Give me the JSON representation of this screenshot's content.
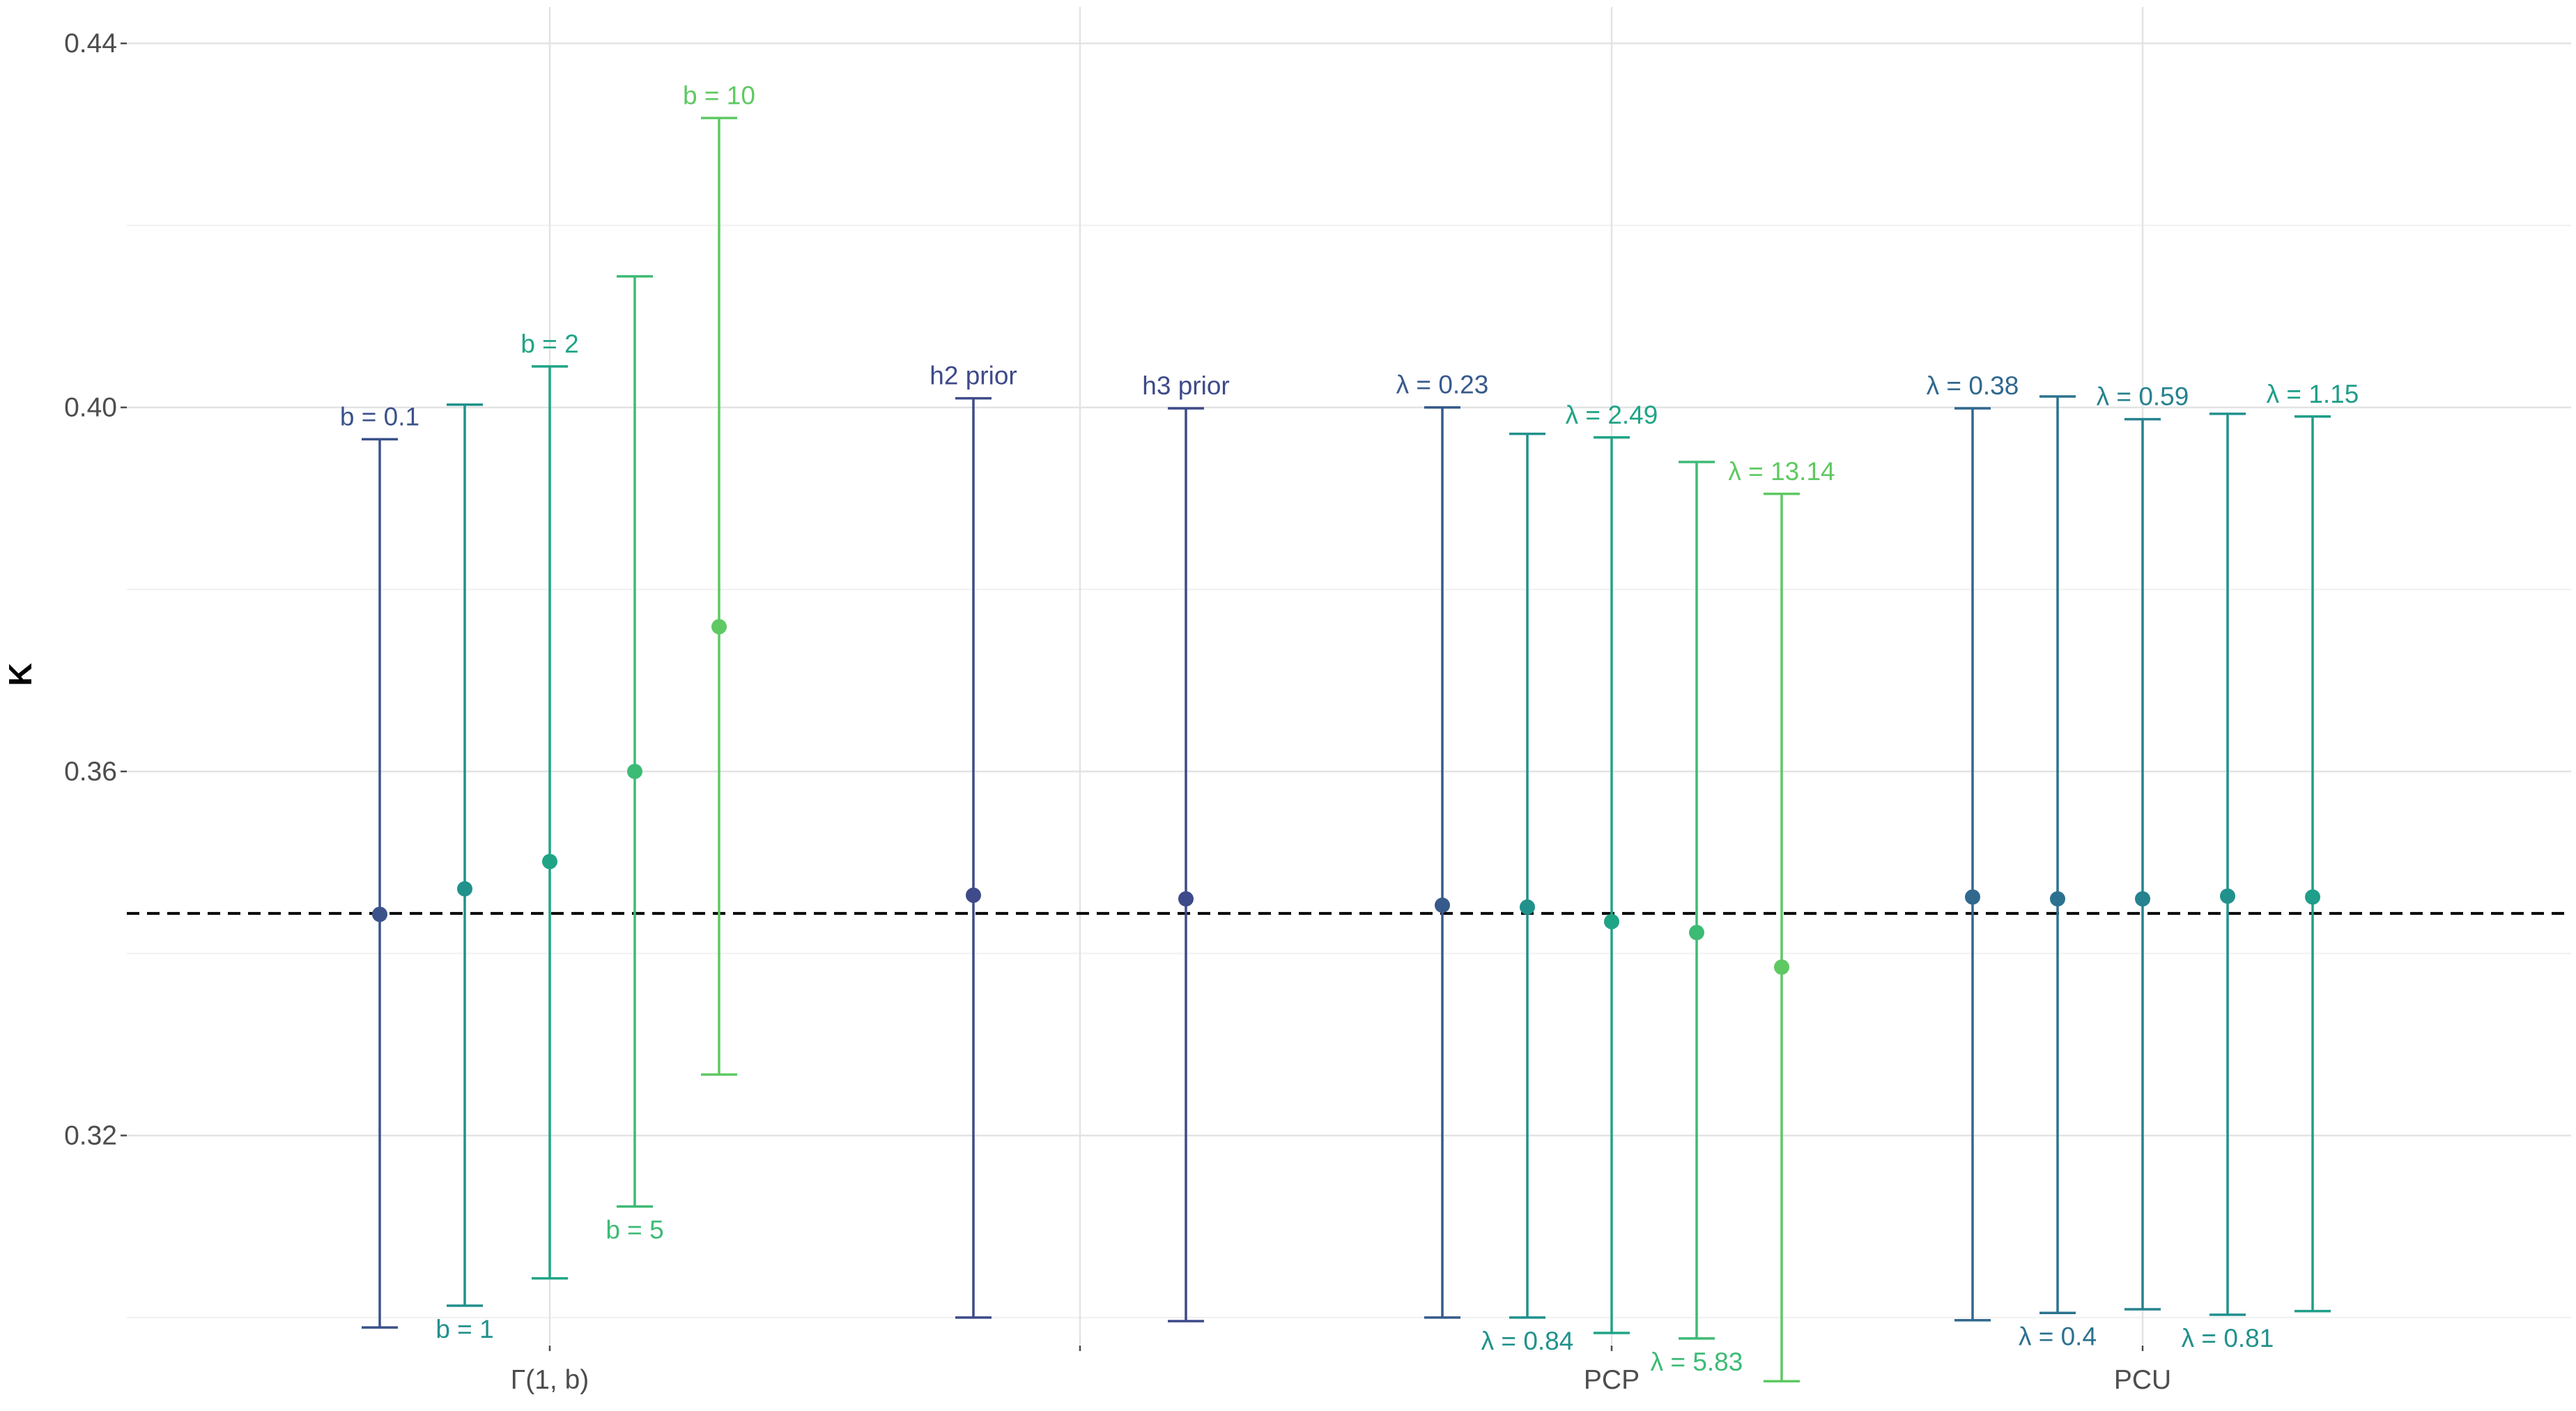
{
  "chart_data": {
    "type": "errorbar",
    "ylabel": "K",
    "xlabel": "",
    "ylim": [
      0.297,
      0.444
    ],
    "y_ticks": [
      "0.32",
      "0.36",
      "0.40",
      "0.44"
    ],
    "x_groups": [
      "Γ(1, b)",
      "",
      "PCP",
      "PCU"
    ],
    "reference_line": {
      "y": 0.3444,
      "style": "dashed",
      "color": "#000000"
    },
    "grid": true,
    "points": [
      {
        "label": "b = 0.1",
        "label_pos": "above",
        "y": 0.3443,
        "lower": 0.2989,
        "upper": 0.3965,
        "color": "#3b528b"
      },
      {
        "label": "b = 1",
        "label_pos": "below",
        "y": 0.3471,
        "lower": 0.3013,
        "upper": 0.4003,
        "color": "#21918c"
      },
      {
        "label": "b = 2",
        "label_pos": "above",
        "y": 0.3501,
        "lower": 0.3043,
        "upper": 0.4045,
        "color": "#20a486"
      },
      {
        "label": "b = 5",
        "label_pos": "below",
        "y": 0.36,
        "lower": 0.3122,
        "upper": 0.4144,
        "color": "#3cbb75"
      },
      {
        "label": "b = 10",
        "label_pos": "above",
        "y": 0.3759,
        "lower": 0.3267,
        "upper": 0.4318,
        "color": "#5ec962"
      },
      {
        "label": "h2 prior",
        "label_pos": "above",
        "y": 0.3464,
        "lower": 0.3,
        "upper": 0.401,
        "color": "#3e4a89"
      },
      {
        "label": "h3 prior",
        "label_pos": "above",
        "y": 0.346,
        "lower": 0.2996,
        "upper": 0.3999,
        "color": "#3e4a89"
      },
      {
        "label": "λ = 0.23",
        "label_pos": "above",
        "y": 0.3453,
        "lower": 0.3,
        "upper": 0.4,
        "color": "#375a8c"
      },
      {
        "label": "λ = 0.84",
        "label_pos": "below",
        "y": 0.3451,
        "lower": 0.3,
        "upper": 0.3971,
        "color": "#21918c"
      },
      {
        "label": "λ = 2.49",
        "label_pos": "above",
        "y": 0.3435,
        "lower": 0.2983,
        "upper": 0.3967,
        "color": "#20a486"
      },
      {
        "label": "λ = 5.83",
        "label_pos": "below",
        "y": 0.3423,
        "lower": 0.2977,
        "upper": 0.394,
        "color": "#3cbb75"
      },
      {
        "label": "λ = 13.14",
        "label_pos": "above",
        "y": 0.3385,
        "lower": 0.293,
        "upper": 0.3905,
        "color": "#5ec962"
      },
      {
        "label": "λ = 0.38",
        "label_pos": "above",
        "y": 0.3462,
        "lower": 0.2997,
        "upper": 0.3999,
        "color": "#31688e"
      },
      {
        "label": "λ = 0.4",
        "label_pos": "below",
        "y": 0.346,
        "lower": 0.3005,
        "upper": 0.4012,
        "color": "#2c728e"
      },
      {
        "label": "λ = 0.59",
        "label_pos": "above",
        "y": 0.346,
        "lower": 0.3009,
        "upper": 0.3987,
        "color": "#26828e"
      },
      {
        "label": "λ = 0.81",
        "label_pos": "below",
        "y": 0.3463,
        "lower": 0.3003,
        "upper": 0.3993,
        "color": "#21918c"
      },
      {
        "label": "λ = 1.15",
        "label_pos": "above",
        "y": 0.3462,
        "lower": 0.3007,
        "upper": 0.399,
        "color": "#1f9e89"
      }
    ]
  }
}
